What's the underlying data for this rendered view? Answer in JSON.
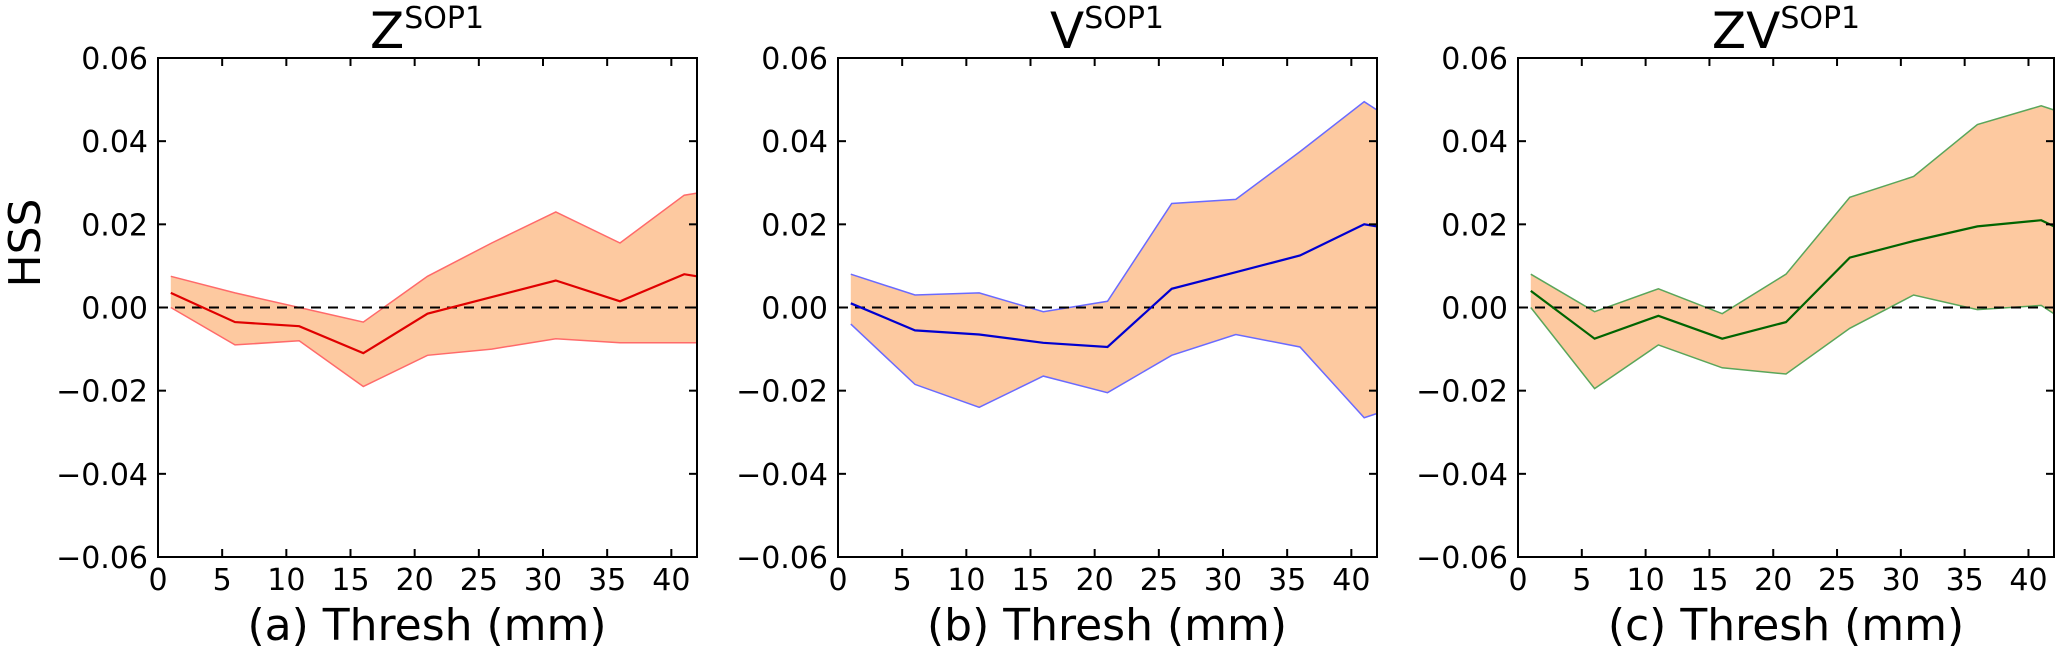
{
  "figure": {
    "ylabel": "HSS"
  },
  "chart_data": [
    {
      "type": "area",
      "id": "a",
      "title_base": "Z",
      "title_sup": "SOP1",
      "xlabel": "(a) Thresh (mm)",
      "ylabel": "HSS",
      "xlim": [
        0,
        42
      ],
      "ylim": [
        -0.06,
        0.06
      ],
      "xticks": [
        "0",
        "5",
        "10",
        "15",
        "20",
        "25",
        "30",
        "35",
        "40"
      ],
      "yticks": [
        "0.06",
        "0.04",
        "0.02",
        "0.00",
        "−0.02",
        "−0.04",
        "−0.06"
      ],
      "x": [
        1,
        6,
        11,
        16,
        21,
        26,
        31,
        36,
        41,
        42
      ],
      "series": [
        {
          "name": "upper",
          "values": [
            0.0075,
            0.0035,
            0.0,
            -0.0035,
            0.0075,
            0.0155,
            0.023,
            0.0155,
            0.027,
            0.0275
          ]
        },
        {
          "name": "mean",
          "values": [
            0.0035,
            -0.0035,
            -0.0045,
            -0.011,
            -0.0015,
            0.0025,
            0.0065,
            0.0015,
            0.008,
            0.0075
          ]
        },
        {
          "name": "lower",
          "values": [
            0.0,
            -0.009,
            -0.008,
            -0.019,
            -0.0115,
            -0.01,
            -0.0075,
            -0.0085,
            -0.0085,
            -0.0085
          ]
        }
      ],
      "band_color": "#fdc9a0",
      "line_color": "#e00000",
      "edge_color": "#ff6a6a"
    },
    {
      "type": "area",
      "id": "b",
      "title_base": "V",
      "title_sup": "SOP1",
      "xlabel": "(b) Thresh (mm)",
      "ylabel": "",
      "xlim": [
        0,
        42
      ],
      "ylim": [
        -0.06,
        0.06
      ],
      "xticks": [
        "0",
        "5",
        "10",
        "15",
        "20",
        "25",
        "30",
        "35",
        "40"
      ],
      "yticks": [
        "0.06",
        "0.04",
        "0.02",
        "0.00",
        "−0.02",
        "−0.04",
        "−0.06"
      ],
      "x": [
        1,
        6,
        11,
        16,
        21,
        26,
        31,
        36,
        41,
        42
      ],
      "series": [
        {
          "name": "upper",
          "values": [
            0.008,
            0.003,
            0.0035,
            -0.001,
            0.0015,
            0.025,
            0.026,
            0.0375,
            0.0495,
            0.0475
          ]
        },
        {
          "name": "mean",
          "values": [
            0.001,
            -0.0055,
            -0.0065,
            -0.0085,
            -0.0095,
            0.0045,
            0.0085,
            0.0125,
            0.02,
            0.0195
          ]
        },
        {
          "name": "lower",
          "values": [
            -0.004,
            -0.0185,
            -0.024,
            -0.0165,
            -0.0205,
            -0.0115,
            -0.0065,
            -0.0095,
            -0.0265,
            -0.0255
          ]
        }
      ],
      "band_color": "#fdc9a0",
      "line_color": "#0000d0",
      "edge_color": "#6a6aff"
    },
    {
      "type": "area",
      "id": "c",
      "title_base": "ZV",
      "title_sup": "SOP1",
      "xlabel": "(c) Thresh (mm)",
      "ylabel": "",
      "xlim": [
        0,
        42
      ],
      "ylim": [
        -0.06,
        0.06
      ],
      "xticks": [
        "0",
        "5",
        "10",
        "15",
        "20",
        "25",
        "30",
        "35",
        "40"
      ],
      "yticks": [
        "0.06",
        "0.04",
        "0.02",
        "0.00",
        "−0.02",
        "−0.04",
        "−0.06"
      ],
      "x": [
        1,
        6,
        11,
        16,
        21,
        26,
        31,
        36,
        41,
        42
      ],
      "series": [
        {
          "name": "upper",
          "values": [
            0.008,
            -0.001,
            0.0045,
            -0.0015,
            0.008,
            0.0265,
            0.0315,
            0.044,
            0.0485,
            0.0475
          ]
        },
        {
          "name": "mean",
          "values": [
            0.004,
            -0.0075,
            -0.002,
            -0.0075,
            -0.0035,
            0.012,
            0.016,
            0.0195,
            0.021,
            0.0195
          ]
        },
        {
          "name": "lower",
          "values": [
            0.0,
            -0.0195,
            -0.009,
            -0.0145,
            -0.016,
            -0.005,
            0.003,
            -0.0005,
            0.0005,
            -0.0015
          ]
        }
      ],
      "band_color": "#fdc9a0",
      "line_color": "#006400",
      "edge_color": "#5aa65a"
    }
  ]
}
